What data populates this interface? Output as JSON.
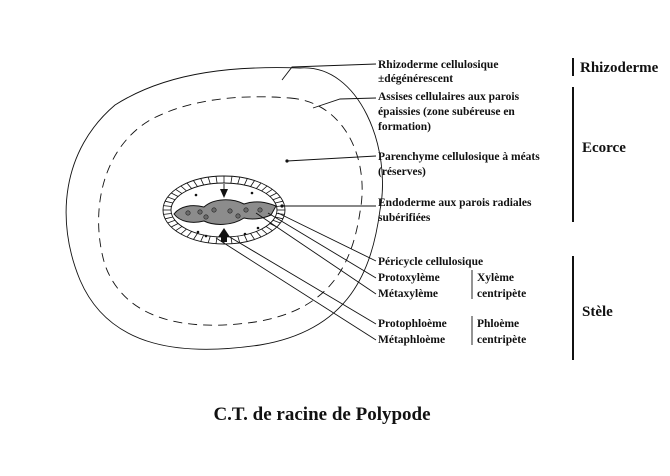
{
  "caption": "C.T. de racine de Polypode",
  "labels": {
    "rhizoderme_l1": "Rhizoderme cellulosique",
    "rhizoderme_l2": "±dégénérescent",
    "assises_l1": "Assises cellulaires aux parois",
    "assises_l2": "épaissies (zone subéreuse en",
    "assises_l3": "formation)",
    "parenchyme_l1": "Parenchyme cellulosique à méats",
    "parenchyme_l2": "(réserves)",
    "endoderme_l1": "Endoderme aux parois radiales",
    "endoderme_l2": "subérifiées",
    "pericycle": "Péricycle cellulosique",
    "protoxyleme": "Protoxylème",
    "metaxyleme": "Métaxylème",
    "protophloeme": "Protophloème",
    "metaphloeme": "Métaphloème",
    "xyleme_l1": "Xylème",
    "xyleme_l2": "centripète",
    "phloeme_l1": "Phloème",
    "phloeme_l2": "centripète"
  },
  "sections": {
    "rhizoderme": "Rhizoderme",
    "ecorce": "Ecorce",
    "stele": "Stèle"
  }
}
